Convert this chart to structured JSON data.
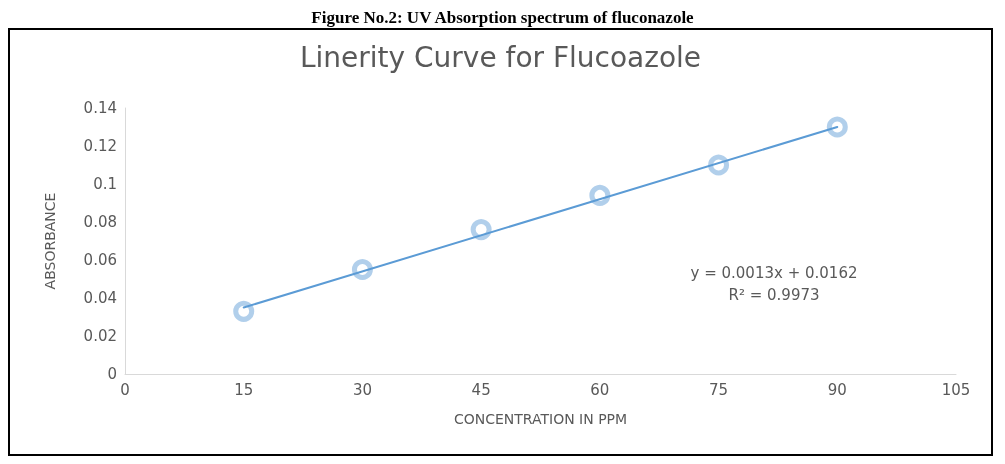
{
  "chart_data": {
    "type": "scatter",
    "title": "Linerity Curve for Flucoazole",
    "xlabel": "CONCENTRATION IN PPM",
    "ylabel": "ABSORBANCE",
    "annotations": [
      "Figure No.2: UV Absorption spectrum of fluconazole",
      "y = 0.0013x + 0.0162\nR² = 0.9973"
    ],
    "series": [
      {
        "color": "#9dc3e6",
        "marker": "circle",
        "x": [
          15,
          30,
          45,
          60,
          75,
          90
        ],
        "values": [
          0.033,
          0.055,
          0.076,
          0.094,
          0.11,
          0.13
        ]
      },
      {
        "type": "line",
        "color": "#5b9bd5",
        "marker": "none",
        "line_style": "solid",
        "x": [
          15,
          90
        ],
        "values": [
          0.035,
          0.13
        ]
      }
    ],
    "xlim": [
      0,
      105
    ],
    "xticks": [
      0,
      15,
      30,
      45,
      60,
      75,
      90,
      105
    ],
    "ylim": [
      0,
      0.14
    ],
    "yticks": [
      0,
      0.02,
      0.04,
      0.06,
      0.08,
      0.1,
      0.12,
      0.14
    ],
    "grid": false
  }
}
